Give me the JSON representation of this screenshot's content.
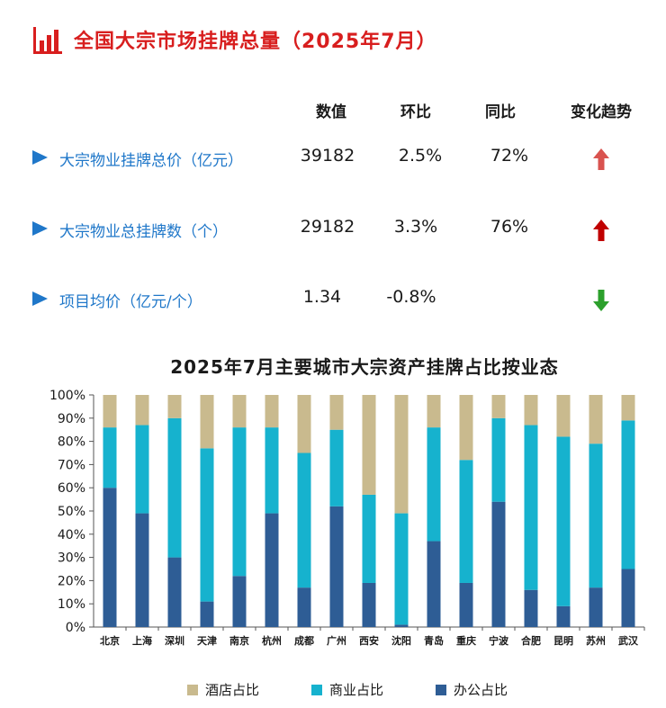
{
  "header": {
    "title": "全国大宗市场挂牌总量（2025年7月）"
  },
  "table": {
    "columns": [
      "数值",
      "环比",
      "同比",
      "变化趋势"
    ],
    "rows": [
      {
        "label": "大宗物业挂牌总价（亿元）",
        "value": "39182",
        "mom": "2.5%",
        "yoy": "72%",
        "trend": "up"
      },
      {
        "label": "大宗物业总挂牌数（个）",
        "value": "29182",
        "mom": "3.3%",
        "yoy": "76%",
        "trend": "up"
      },
      {
        "label": "项目均价（亿元/个）",
        "value": "1.34",
        "mom": "-0.8%",
        "yoy": "",
        "trend": "down"
      }
    ]
  },
  "colors": {
    "accent_red": "#d81e1e",
    "row_blue": "#1f77c9",
    "trend_up_light": "#d9534f",
    "trend_up_dark": "#c00000",
    "trend_down": "#2ca02c"
  },
  "chart_data": {
    "type": "bar",
    "stacked": true,
    "title": "2025年7月主要城市大宗资产挂牌占比按业态",
    "categories": [
      "北京",
      "上海",
      "深圳",
      "天津",
      "南京",
      "杭州",
      "成都",
      "广州",
      "西安",
      "沈阳",
      "青岛",
      "重庆",
      "宁波",
      "合肥",
      "昆明",
      "苏州",
      "武汉"
    ],
    "series": [
      {
        "name": "办公占比",
        "color": "#2e5d95",
        "values": [
          60,
          49,
          30,
          11,
          22,
          49,
          17,
          52,
          19,
          1,
          37,
          19,
          54,
          16,
          9,
          17,
          25
        ]
      },
      {
        "name": "商业占比",
        "color": "#16b2ce",
        "values": [
          26,
          38,
          60,
          66,
          64,
          37,
          58,
          33,
          38,
          48,
          49,
          53,
          36,
          71,
          73,
          62,
          64
        ]
      },
      {
        "name": "酒店占比",
        "color": "#c9ba8e",
        "values": [
          14,
          13,
          10,
          23,
          14,
          14,
          25,
          15,
          43,
          51,
          14,
          28,
          10,
          13,
          18,
          21,
          11
        ]
      }
    ],
    "ylim": [
      0,
      100
    ],
    "yticks": [
      "0%",
      "10%",
      "20%",
      "30%",
      "40%",
      "50%",
      "60%",
      "70%",
      "80%",
      "90%",
      "100%"
    ],
    "legend": [
      "酒店占比",
      "商业占比",
      "办公占比"
    ],
    "legend_position": "bottom",
    "grid": false
  }
}
